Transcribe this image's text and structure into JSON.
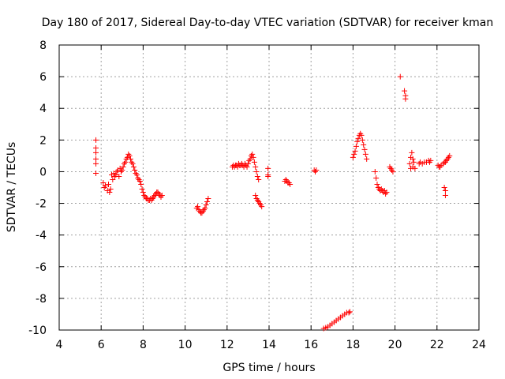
{
  "chart_data": {
    "type": "scatter",
    "title": "Day 180 of 2017, Sidereal Day-to-day VTEC variation (SDTVAR) for receiver kman",
    "xlabel": "GPS time / hours",
    "ylabel": "SDTVAR / TECUs",
    "xlim": [
      4,
      24
    ],
    "ylim": [
      -10,
      8
    ],
    "xticks": [
      4,
      6,
      8,
      10,
      12,
      14,
      16,
      18,
      20,
      22,
      24
    ],
    "yticks": [
      -10,
      -8,
      -6,
      -4,
      -2,
      0,
      2,
      4,
      6,
      8
    ],
    "grid": true,
    "marker": "+",
    "marker_color": "#ff0000",
    "series": [
      {
        "name": "SDTVAR",
        "points": [
          [
            5.75,
            2.0
          ],
          [
            5.75,
            1.5
          ],
          [
            5.75,
            1.2
          ],
          [
            5.75,
            0.8
          ],
          [
            5.75,
            0.5
          ],
          [
            5.75,
            -0.1
          ],
          [
            6.1,
            -0.7
          ],
          [
            6.15,
            -1.0
          ],
          [
            6.2,
            -0.9
          ],
          [
            6.3,
            -1.2
          ],
          [
            6.35,
            -0.8
          ],
          [
            6.4,
            -1.3
          ],
          [
            6.45,
            -1.1
          ],
          [
            6.5,
            -0.2
          ],
          [
            6.55,
            -0.5
          ],
          [
            6.6,
            -0.1
          ],
          [
            6.65,
            -0.3
          ],
          [
            6.7,
            -0.2
          ],
          [
            6.75,
            0.0
          ],
          [
            6.8,
            0.1
          ],
          [
            6.85,
            -0.3
          ],
          [
            6.9,
            0.2
          ],
          [
            6.95,
            0.0
          ],
          [
            7.0,
            0.1
          ],
          [
            7.05,
            0.3
          ],
          [
            7.1,
            0.5
          ],
          [
            7.15,
            0.6
          ],
          [
            7.2,
            0.8
          ],
          [
            7.25,
            0.9
          ],
          [
            7.3,
            1.1
          ],
          [
            7.35,
            1.0
          ],
          [
            7.4,
            0.8
          ],
          [
            7.45,
            0.6
          ],
          [
            7.5,
            0.5
          ],
          [
            7.55,
            0.3
          ],
          [
            7.6,
            0.1
          ],
          [
            7.65,
            -0.1
          ],
          [
            7.7,
            -0.2
          ],
          [
            7.75,
            -0.4
          ],
          [
            7.8,
            -0.5
          ],
          [
            7.85,
            -0.6
          ],
          [
            7.9,
            -0.8
          ],
          [
            7.95,
            -1.1
          ],
          [
            8.0,
            -1.3
          ],
          [
            8.05,
            -1.5
          ],
          [
            8.1,
            -1.6
          ],
          [
            8.15,
            -1.7
          ],
          [
            8.2,
            -1.7
          ],
          [
            8.25,
            -1.8
          ],
          [
            8.3,
            -1.8
          ],
          [
            8.35,
            -1.7
          ],
          [
            8.4,
            -1.8
          ],
          [
            8.45,
            -1.7
          ],
          [
            8.5,
            -1.6
          ],
          [
            8.55,
            -1.5
          ],
          [
            8.6,
            -1.4
          ],
          [
            8.65,
            -1.3
          ],
          [
            8.7,
            -1.3
          ],
          [
            8.75,
            -1.4
          ],
          [
            8.8,
            -1.5
          ],
          [
            8.85,
            -1.6
          ],
          [
            8.9,
            -1.5
          ],
          [
            10.55,
            -2.3
          ],
          [
            10.6,
            -2.2
          ],
          [
            10.65,
            -2.4
          ],
          [
            10.7,
            -2.5
          ],
          [
            10.75,
            -2.6
          ],
          [
            10.8,
            -2.6
          ],
          [
            10.85,
            -2.5
          ],
          [
            10.9,
            -2.4
          ],
          [
            10.95,
            -2.3
          ],
          [
            11.0,
            -2.1
          ],
          [
            11.05,
            -1.9
          ],
          [
            11.1,
            -1.7
          ],
          [
            12.25,
            0.3
          ],
          [
            12.3,
            0.4
          ],
          [
            12.35,
            0.3
          ],
          [
            12.4,
            0.4
          ],
          [
            12.45,
            0.4
          ],
          [
            12.5,
            0.3
          ],
          [
            12.55,
            0.5
          ],
          [
            12.6,
            0.4
          ],
          [
            12.65,
            0.4
          ],
          [
            12.7,
            0.5
          ],
          [
            12.75,
            0.4
          ],
          [
            12.8,
            0.3
          ],
          [
            12.85,
            0.5
          ],
          [
            12.9,
            0.4
          ],
          [
            12.95,
            0.3
          ],
          [
            13.0,
            0.5
          ],
          [
            13.05,
            0.7
          ],
          [
            13.1,
            0.8
          ],
          [
            13.15,
            1.0
          ],
          [
            13.2,
            1.1
          ],
          [
            13.25,
            0.9
          ],
          [
            13.3,
            0.6
          ],
          [
            13.35,
            0.3
          ],
          [
            13.4,
            0.0
          ],
          [
            13.45,
            -0.3
          ],
          [
            13.5,
            -0.5
          ],
          [
            13.35,
            -1.5
          ],
          [
            13.4,
            -1.7
          ],
          [
            13.45,
            -1.8
          ],
          [
            13.5,
            -1.9
          ],
          [
            13.55,
            -2.0
          ],
          [
            13.6,
            -2.1
          ],
          [
            13.65,
            -2.2
          ],
          [
            13.95,
            0.2
          ],
          [
            13.95,
            -0.2
          ],
          [
            13.95,
            -0.3
          ],
          [
            14.75,
            -0.6
          ],
          [
            14.8,
            -0.5
          ],
          [
            14.85,
            -0.6
          ],
          [
            14.9,
            -0.7
          ],
          [
            14.95,
            -0.7
          ],
          [
            15.0,
            -0.8
          ],
          [
            16.15,
            0.1
          ],
          [
            16.2,
            0.0
          ],
          [
            16.25,
            0.1
          ],
          [
            16.6,
            -9.9
          ],
          [
            16.7,
            -9.85
          ],
          [
            16.8,
            -9.8
          ],
          [
            16.9,
            -9.7
          ],
          [
            17.0,
            -9.6
          ],
          [
            17.1,
            -9.5
          ],
          [
            17.2,
            -9.4
          ],
          [
            17.3,
            -9.3
          ],
          [
            17.4,
            -9.2
          ],
          [
            17.5,
            -9.1
          ],
          [
            17.6,
            -9.0
          ],
          [
            17.7,
            -8.9
          ],
          [
            17.8,
            -8.9
          ],
          [
            17.85,
            -8.85
          ],
          [
            18.0,
            0.9
          ],
          [
            18.05,
            1.1
          ],
          [
            18.1,
            1.3
          ],
          [
            18.15,
            1.6
          ],
          [
            18.2,
            1.9
          ],
          [
            18.25,
            2.1
          ],
          [
            18.3,
            2.3
          ],
          [
            18.35,
            2.4
          ],
          [
            18.4,
            2.3
          ],
          [
            18.45,
            2.0
          ],
          [
            18.5,
            1.7
          ],
          [
            18.55,
            1.4
          ],
          [
            18.6,
            1.1
          ],
          [
            18.65,
            0.8
          ],
          [
            19.05,
            0.0
          ],
          [
            19.1,
            -0.4
          ],
          [
            19.15,
            -0.8
          ],
          [
            19.2,
            -1.0
          ],
          [
            19.25,
            -1.1
          ],
          [
            19.3,
            -1.2
          ],
          [
            19.35,
            -1.1
          ],
          [
            19.4,
            -1.2
          ],
          [
            19.45,
            -1.3
          ],
          [
            19.5,
            -1.2
          ],
          [
            19.55,
            -1.4
          ],
          [
            19.6,
            -1.3
          ],
          [
            19.75,
            0.3
          ],
          [
            19.8,
            0.2
          ],
          [
            19.85,
            0.1
          ],
          [
            19.9,
            0.0
          ],
          [
            20.25,
            6.0
          ],
          [
            20.45,
            5.1
          ],
          [
            20.5,
            4.8
          ],
          [
            20.5,
            4.6
          ],
          [
            20.7,
            0.5
          ],
          [
            20.75,
            0.9
          ],
          [
            20.75,
            0.2
          ],
          [
            20.8,
            1.2
          ],
          [
            20.85,
            0.8
          ],
          [
            20.85,
            0.3
          ],
          [
            20.9,
            0.6
          ],
          [
            20.95,
            0.2
          ],
          [
            21.15,
            0.5
          ],
          [
            21.2,
            0.6
          ],
          [
            21.3,
            0.5
          ],
          [
            21.4,
            0.6
          ],
          [
            21.5,
            0.6
          ],
          [
            21.6,
            0.7
          ],
          [
            21.65,
            0.6
          ],
          [
            21.7,
            0.7
          ],
          [
            22.05,
            0.4
          ],
          [
            22.1,
            0.3
          ],
          [
            22.15,
            0.3
          ],
          [
            22.2,
            0.4
          ],
          [
            22.3,
            0.5
          ],
          [
            22.35,
            0.6
          ],
          [
            22.4,
            0.6
          ],
          [
            22.45,
            0.7
          ],
          [
            22.5,
            0.8
          ],
          [
            22.55,
            0.9
          ],
          [
            22.6,
            1.0
          ],
          [
            22.35,
            -1.0
          ],
          [
            22.4,
            -1.2
          ],
          [
            22.4,
            -1.5
          ]
        ]
      }
    ]
  }
}
